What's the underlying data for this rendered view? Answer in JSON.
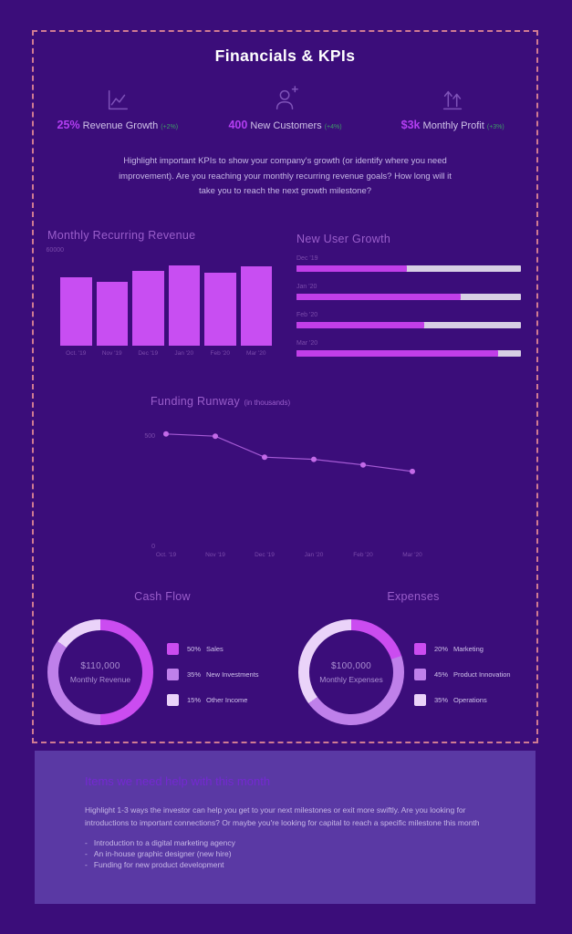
{
  "page": {
    "title": "Financials & KPIs",
    "intro": "Highlight important KPIs to show your company's growth (or identify where you need improvement). Are you reaching your monthly recurring revenue goals? How long will it take you to reach the next growth milestone?"
  },
  "kpis": [
    {
      "id": "revenue-growth",
      "icon": "line-chart-icon",
      "value": "25%",
      "label": "Revenue Growth",
      "delta": "(+2%)"
    },
    {
      "id": "new-customers",
      "icon": "add-user-icon",
      "value": "400",
      "label": "New Customers",
      "delta": "(+4%)"
    },
    {
      "id": "monthly-profit",
      "icon": "growth-arrows-icon",
      "value": "$3k",
      "label": "Monthly Profit",
      "delta": "(+3%)"
    }
  ],
  "chart_data": [
    {
      "id": "mrr",
      "type": "bar",
      "title": "Monthly Recurring Revenue",
      "categories": [
        "Oct. '19",
        "Nov '19",
        "Dec '19",
        "Jan '20",
        "Feb '20",
        "Mar '20"
      ],
      "values": [
        45000,
        42000,
        49000,
        53000,
        48000,
        52000
      ],
      "ylim": [
        0,
        60000
      ],
      "yticks": [
        "60000",
        "0"
      ],
      "grid": false,
      "bar_color": "#c84ef2"
    },
    {
      "id": "new_user_growth",
      "type": "bar",
      "orientation": "horizontal",
      "title": "New User Growth",
      "categories": [
        "Dec '19",
        "Jan '20",
        "Feb '20",
        "Mar '20"
      ],
      "values_pct": [
        49,
        73,
        57,
        90
      ],
      "fill_color": "#c13ee8",
      "track_color": "#d7cfe4"
    },
    {
      "id": "funding_runway",
      "type": "line",
      "title": "Funding Runway",
      "subtitle": "(in thousands)",
      "categories": [
        "Oct. '19",
        "Nov '19",
        "Dec '19",
        "Jan '20",
        "Feb '20",
        "Mar '20"
      ],
      "values": [
        505,
        495,
        400,
        390,
        365,
        335
      ],
      "ylim": [
        0,
        500
      ],
      "yticks": [
        "500",
        "0"
      ],
      "line_color": "#a55ad5",
      "point_color": "#c36ae8"
    },
    {
      "id": "cash_flow",
      "type": "donut",
      "title": "Cash Flow",
      "center_value": "$110,000",
      "center_label": "Monthly Revenue",
      "slices": [
        {
          "pct": 50,
          "label": "Sales",
          "color": "#cb4cf0"
        },
        {
          "pct": 35,
          "label": "New Investments",
          "color": "#bf80ea"
        },
        {
          "pct": 15,
          "label": "Other Income",
          "color": "#ead3f9"
        }
      ]
    },
    {
      "id": "expenses",
      "type": "donut",
      "title": "Expenses",
      "center_value": "$100,000",
      "center_label": "Monthly Expenses",
      "slices": [
        {
          "pct": 20,
          "label": "Marketing",
          "color": "#cb4cf0"
        },
        {
          "pct": 45,
          "label": "Product Innovation",
          "color": "#bf80ea"
        },
        {
          "pct": 35,
          "label": "Operations",
          "color": "#ead3f9"
        }
      ]
    }
  ],
  "help_section": {
    "heading": "Items we need help with this month",
    "body": "Highlight 1-3 ways the investor can help you get to your next milestones or exit more swiftly. Are you looking for introductions to important connections? Or maybe you're looking for capital to reach a specific milestone this month",
    "items": [
      "Introduction to a digital marketing agency",
      "An in-house graphic designer (new hire)",
      "Funding for new product development"
    ]
  },
  "colors": {
    "background": "#3b0d7a",
    "panel": "#5a39a4",
    "dashed_border": "#d07b92",
    "accent_magenta": "#b33ef2",
    "delta_green": "#3d9e66",
    "section_title": "#9a5ecb",
    "axis_text": "#7b4cab",
    "body_text": "#c6b7e6",
    "legend_text": "#cfc2ea",
    "donut_center_text": "#ab90d2",
    "help_heading": "#7429d1",
    "bar_color": "#c84ef2",
    "fill_color": "#c13ee8",
    "track_color": "#d7cfe4",
    "line_color": "#a55ad5",
    "point_color": "#c36ae8",
    "white": "#ffffff"
  }
}
